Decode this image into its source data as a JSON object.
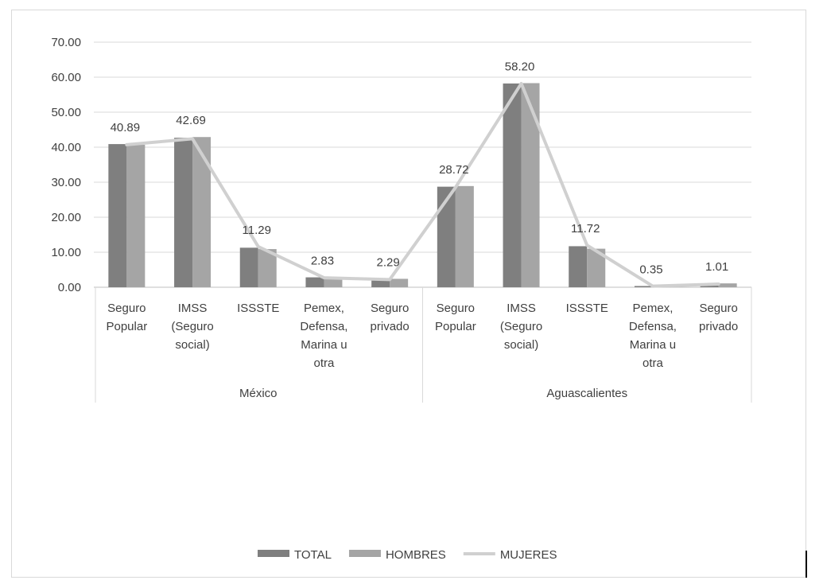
{
  "chart_data": {
    "type": "bar",
    "title": "",
    "xlabel": "",
    "ylabel": "",
    "ylim": [
      0,
      70
    ],
    "yticks": [
      "0.00",
      "10.00",
      "20.00",
      "30.00",
      "40.00",
      "50.00",
      "60.00",
      "70.00"
    ],
    "grid": true,
    "legend_position": "bottom",
    "groups": [
      {
        "name": "México",
        "categories": [
          [
            "Seguro",
            "Popular"
          ],
          [
            "IMSS",
            "(Seguro",
            "social)"
          ],
          [
            "ISSSTE"
          ],
          [
            "Pemex,",
            "Defensa,",
            "Marina u",
            "otra"
          ],
          [
            "Seguro",
            "privado"
          ]
        ]
      },
      {
        "name": "Aguascalientes",
        "categories": [
          [
            "Seguro",
            "Popular"
          ],
          [
            "IMSS",
            "(Seguro",
            "social)"
          ],
          [
            "ISSSTE"
          ],
          [
            "Pemex,",
            "Defensa,",
            "Marina u",
            "otra"
          ],
          [
            "Seguro",
            "privado"
          ]
        ]
      }
    ],
    "series": [
      {
        "name": "TOTAL",
        "type": "bar",
        "color": "#7f7f7f",
        "values": [
          40.89,
          42.69,
          11.29,
          2.83,
          2.29,
          28.72,
          58.2,
          11.72,
          0.35,
          1.01
        ]
      },
      {
        "name": "HOMBRES",
        "type": "bar",
        "color": "#a5a5a5",
        "values": [
          40.7,
          42.9,
          10.9,
          2.4,
          2.4,
          28.9,
          58.3,
          11.0,
          0.35,
          1.1
        ]
      },
      {
        "name": "MUJERES",
        "type": "line",
        "color": "#d0d0d0",
        "values": [
          40.7,
          42.4,
          11.6,
          2.7,
          2.2,
          28.5,
          58.2,
          12.0,
          0.3,
          0.9
        ]
      }
    ],
    "data_labels": [
      "40.89",
      "42.69",
      "11.29",
      "2.83",
      "2.29",
      "28.72",
      "58.20",
      "11.72",
      "0.35",
      "1.01"
    ]
  }
}
